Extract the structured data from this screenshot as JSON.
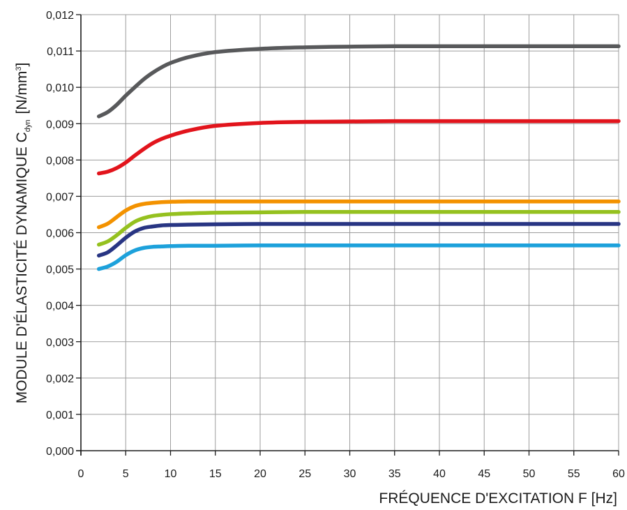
{
  "chart_data": {
    "type": "line",
    "xlabel": "FRÉQUENCE D'EXCITATION F [Hz]",
    "ylabel": {
      "main": "MODULE D'ÉLASTICITÉ DYNAMIQUE C",
      "subscript": "dyn",
      "unit": "[N/mm",
      "unit_sup": "3",
      "unit_close": "]"
    },
    "xlim": [
      0,
      60
    ],
    "ylim": [
      0,
      0.012
    ],
    "grid": true,
    "x_ticks": [
      {
        "value": 0,
        "label": "0"
      },
      {
        "value": 5,
        "label": "5"
      },
      {
        "value": 10,
        "label": "10"
      },
      {
        "value": 15,
        "label": "15"
      },
      {
        "value": 20,
        "label": "20"
      },
      {
        "value": 25,
        "label": "25"
      },
      {
        "value": 30,
        "label": "30"
      },
      {
        "value": 35,
        "label": "35"
      },
      {
        "value": 40,
        "label": "40"
      },
      {
        "value": 45,
        "label": "45"
      },
      {
        "value": 50,
        "label": "50"
      },
      {
        "value": 55,
        "label": "55"
      },
      {
        "value": 60,
        "label": "60"
      }
    ],
    "y_ticks": [
      {
        "value": 0,
        "label": "0,000"
      },
      {
        "value": 0.001,
        "label": "0,001"
      },
      {
        "value": 0.002,
        "label": "0,002"
      },
      {
        "value": 0.003,
        "label": "0,003"
      },
      {
        "value": 0.004,
        "label": "0,004"
      },
      {
        "value": 0.005,
        "label": "0,005"
      },
      {
        "value": 0.006,
        "label": "0,006"
      },
      {
        "value": 0.007,
        "label": "0,007"
      },
      {
        "value": 0.008,
        "label": "0,008"
      },
      {
        "value": 0.009,
        "label": "0,009"
      },
      {
        "value": 0.01,
        "label": "0,010"
      },
      {
        "value": 0.011,
        "label": "0,011"
      },
      {
        "value": 0.012,
        "label": "0,012"
      }
    ],
    "series": [
      {
        "color": "#58595b",
        "x": [
          2,
          3,
          4,
          5,
          6,
          7,
          8,
          9,
          10,
          12,
          15,
          20,
          25,
          30,
          35,
          40,
          45,
          50,
          55,
          60
        ],
        "y": [
          0.0092,
          0.00932,
          0.00952,
          0.00977,
          0.01,
          0.01022,
          0.0104,
          0.01055,
          0.01067,
          0.01083,
          0.01097,
          0.01106,
          0.0111,
          0.01112,
          0.01113,
          0.01113,
          0.01113,
          0.01113,
          0.01113,
          0.01113
        ]
      },
      {
        "color": "#e2141c",
        "x": [
          2,
          3,
          4,
          5,
          6,
          7,
          8,
          9,
          10,
          12,
          15,
          20,
          25,
          30,
          35,
          40,
          45,
          50,
          55,
          60
        ],
        "y": [
          0.00763,
          0.00768,
          0.00778,
          0.00793,
          0.00812,
          0.0083,
          0.00846,
          0.00858,
          0.00867,
          0.00881,
          0.00894,
          0.00902,
          0.00905,
          0.00906,
          0.00907,
          0.00907,
          0.00907,
          0.00907,
          0.00907,
          0.00907
        ]
      },
      {
        "color": "#f39200",
        "x": [
          2,
          3,
          4,
          5,
          6,
          7,
          8,
          9,
          10,
          12,
          15,
          20,
          25,
          30,
          35,
          40,
          45,
          50,
          55,
          60
        ],
        "y": [
          0.00615,
          0.00625,
          0.00643,
          0.00661,
          0.00673,
          0.00679,
          0.00682,
          0.00684,
          0.00685,
          0.00686,
          0.00686,
          0.00686,
          0.00686,
          0.00686,
          0.00686,
          0.00686,
          0.00686,
          0.00686,
          0.00686,
          0.00686
        ]
      },
      {
        "color": "#95c11f",
        "x": [
          2,
          3,
          4,
          5,
          6,
          7,
          8,
          9,
          10,
          12,
          15,
          20,
          25,
          30,
          35,
          40,
          45,
          50,
          55,
          60
        ],
        "y": [
          0.00567,
          0.00576,
          0.00593,
          0.00613,
          0.0063,
          0.0064,
          0.00646,
          0.00649,
          0.00651,
          0.00653,
          0.00655,
          0.00656,
          0.00657,
          0.00657,
          0.00657,
          0.00657,
          0.00657,
          0.00657,
          0.00657,
          0.00657
        ]
      },
      {
        "color": "#283583",
        "x": [
          2,
          3,
          4,
          5,
          6,
          7,
          8,
          9,
          10,
          12,
          15,
          20,
          25,
          30,
          35,
          40,
          45,
          50,
          55,
          60
        ],
        "y": [
          0.00537,
          0.00546,
          0.00565,
          0.00586,
          0.00603,
          0.00613,
          0.00617,
          0.0062,
          0.00621,
          0.00622,
          0.00623,
          0.00624,
          0.00624,
          0.00624,
          0.00624,
          0.00624,
          0.00624,
          0.00624,
          0.00624,
          0.00624
        ]
      },
      {
        "color": "#1da1db",
        "x": [
          2,
          3,
          4,
          5,
          6,
          7,
          8,
          9,
          10,
          12,
          15,
          20,
          25,
          30,
          35,
          40,
          45,
          50,
          55,
          60
        ],
        "y": [
          0.005,
          0.00507,
          0.0052,
          0.00538,
          0.00551,
          0.00558,
          0.00561,
          0.00562,
          0.00563,
          0.00564,
          0.00564,
          0.00565,
          0.00565,
          0.00565,
          0.00565,
          0.00565,
          0.00565,
          0.00565,
          0.00565,
          0.00565
        ]
      }
    ]
  }
}
